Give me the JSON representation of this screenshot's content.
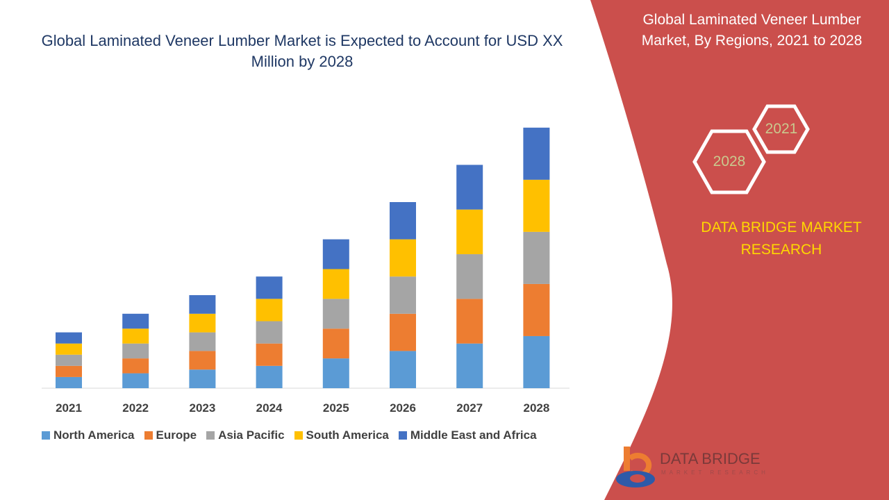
{
  "header": {
    "title": "Global Laminated Veneer Lumber Market is Expected to Account for USD XX Million by 2028"
  },
  "panel": {
    "title": "Global Laminated Veneer Lumber Market, By Regions, 2021 to 2028",
    "hex_2021": "2021",
    "hex_2028": "2028",
    "brand": "DATA BRIDGE MARKET RESEARCH",
    "logo": "DATA BRIDGE",
    "logo_sub": "MARKET RESEARCH",
    "color": "#cb4f4c"
  },
  "chart_data": {
    "type": "bar",
    "stacked": true,
    "title": "Global Laminated Veneer Lumber Market is Expected to Account for USD XX Million by 2028",
    "categories": [
      "2021",
      "2022",
      "2023",
      "2024",
      "2025",
      "2026",
      "2027",
      "2028"
    ],
    "series": [
      {
        "name": "North America",
        "color": "#5b9bd5",
        "values": [
          3,
          4,
          5,
          6,
          8,
          10,
          12,
          14
        ]
      },
      {
        "name": "Europe",
        "color": "#ed7d31",
        "values": [
          3,
          4,
          5,
          6,
          8,
          10,
          12,
          14
        ]
      },
      {
        "name": "Asia Pacific",
        "color": "#a5a5a5",
        "values": [
          3,
          4,
          5,
          6,
          8,
          10,
          12,
          14
        ]
      },
      {
        "name": "South America",
        "color": "#ffc000",
        "values": [
          3,
          4,
          5,
          6,
          8,
          10,
          12,
          14
        ]
      },
      {
        "name": "Middle East and Africa",
        "color": "#4472c4",
        "values": [
          3,
          4,
          5,
          6,
          8,
          10,
          12,
          14
        ]
      }
    ],
    "xlabel": "",
    "ylabel": "",
    "grid": false,
    "legend": "bottom"
  }
}
